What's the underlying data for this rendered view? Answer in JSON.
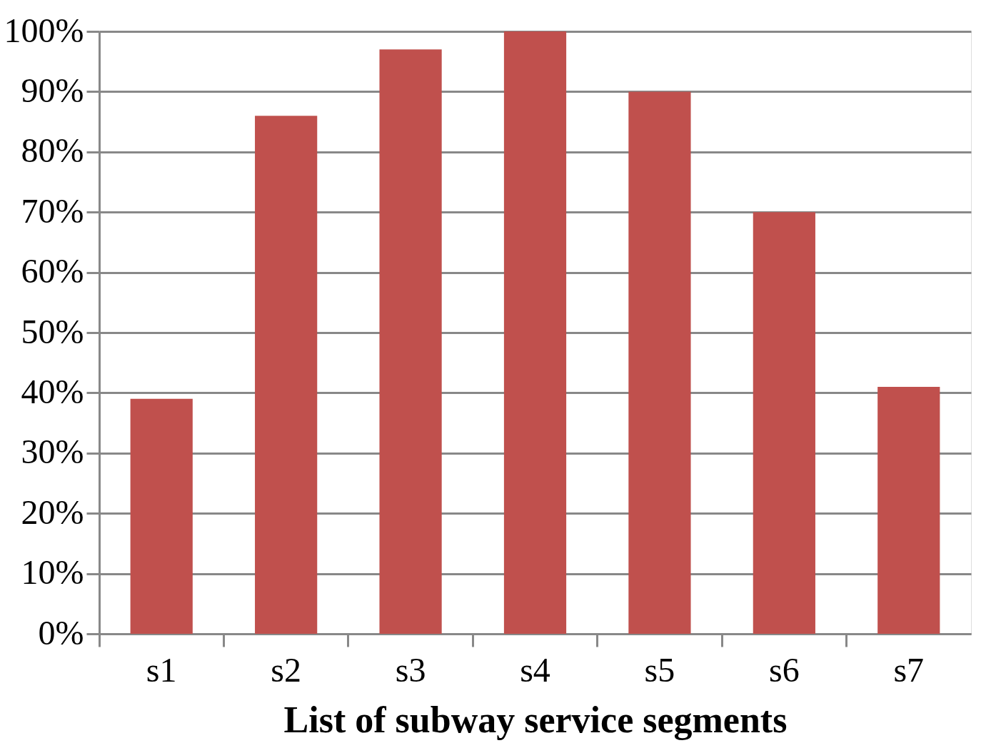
{
  "chart_data": {
    "type": "bar",
    "xlabel": "List of subway service segments",
    "categories": [
      "s1",
      "s2",
      "s3",
      "s4",
      "s5",
      "s6",
      "s7"
    ],
    "values": [
      39,
      86,
      97,
      100,
      90,
      70,
      41
    ],
    "color": "#c0504d",
    "ylim": [
      0,
      100
    ],
    "yticks": [
      {
        "value": 0,
        "label": "0%"
      },
      {
        "value": 10,
        "label": "10%"
      },
      {
        "value": 20,
        "label": "20%"
      },
      {
        "value": 30,
        "label": "30%"
      },
      {
        "value": 40,
        "label": "40%"
      },
      {
        "value": 50,
        "label": "50%"
      },
      {
        "value": 60,
        "label": "60%"
      },
      {
        "value": 70,
        "label": "70%"
      },
      {
        "value": 80,
        "label": "80%"
      },
      {
        "value": 90,
        "label": "90%"
      },
      {
        "value": 100,
        "label": "100%"
      }
    ],
    "grid": "y"
  }
}
